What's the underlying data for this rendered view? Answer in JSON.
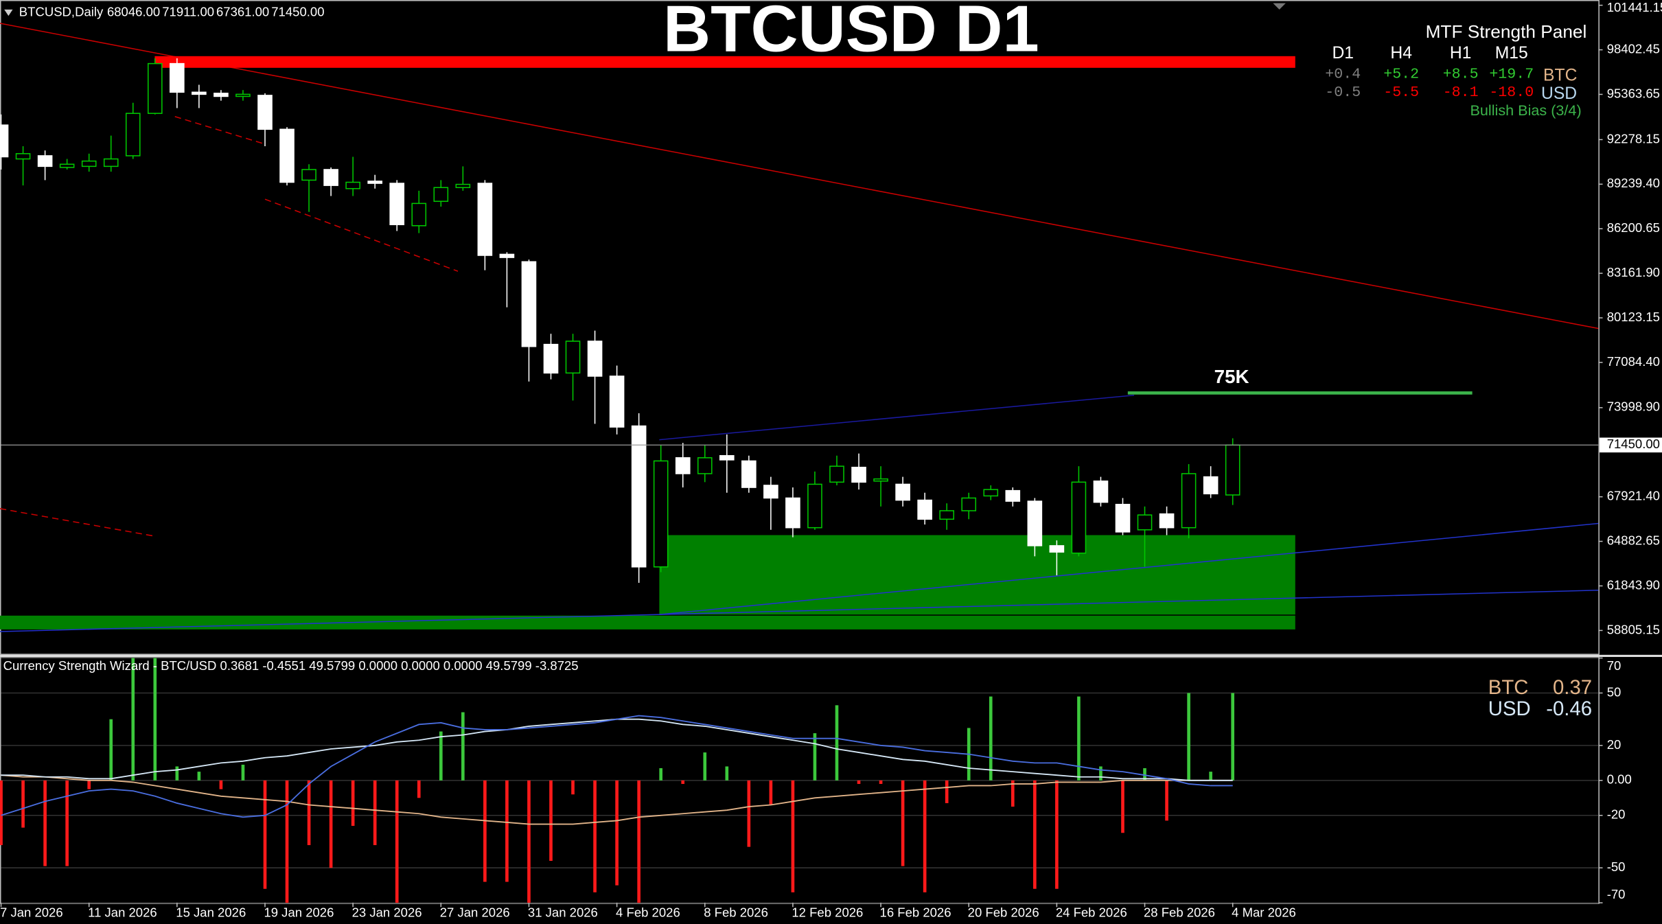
{
  "header": {
    "symbol": "BTCUSD,Daily",
    "ohlc": [
      "68046.00",
      "71911.00",
      "67361.00",
      "71450.00"
    ]
  },
  "title": "BTCUSD D1",
  "mtf_panel": {
    "title": "MTF Strength Panel",
    "columns": [
      "D1",
      "H4",
      "H1",
      "M15"
    ],
    "rows": [
      {
        "label": "BTC",
        "values": [
          "+0.4",
          "+5.2",
          "+8.5",
          "+19.7"
        ]
      },
      {
        "label": "USD",
        "values": [
          "-0.5",
          "-5.5",
          "-8.1",
          "-18.0"
        ]
      }
    ],
    "bias": "Bullish Bias (3/4)"
  },
  "chart_data": [
    {
      "type": "candlestick",
      "categories": [
        "7 Jan 2026",
        null,
        null,
        null,
        "11 Jan 2026",
        null,
        null,
        null,
        "15 Jan 2026",
        null,
        null,
        null,
        "19 Jan 2026",
        null,
        null,
        null,
        "23 Jan 2026",
        null,
        null,
        null,
        "27 Jan 2026",
        null,
        null,
        null,
        "31 Jan 2026",
        null,
        null,
        null,
        "4 Feb 2026",
        null,
        null,
        null,
        "8 Feb 2026",
        null,
        null,
        null,
        "12 Feb 2026",
        null,
        null,
        null,
        "16 Feb 2026",
        null,
        null,
        null,
        "20 Feb 2026",
        null,
        null,
        null,
        "24 Feb 2026",
        null,
        null,
        null,
        "28 Feb 2026",
        null,
        null,
        null,
        "4 Mar 2026"
      ],
      "open": [
        93272,
        90960,
        91177,
        90382,
        90454,
        90454,
        91177,
        94067,
        97463,
        95512,
        95440,
        95225,
        95296,
        92983,
        89515,
        90237,
        88937,
        89443,
        89298,
        86408,
        88070,
        89009,
        89298,
        84457,
        83951,
        78314,
        76363,
        78531,
        76147,
        72750,
        63140,
        70583,
        69499,
        70727,
        70366,
        68704,
        67837,
        65814,
        68921,
        69932,
        68993,
        68776,
        67692,
        66392,
        66970,
        67981,
        68343,
        67620,
        64585,
        64079,
        68993,
        67403,
        65669,
        66753,
        65814,
        69282,
        68046
      ],
      "high": [
        93995,
        91827,
        91538,
        90960,
        91321,
        92550,
        94790,
        97825,
        97825,
        96018,
        95657,
        95657,
        95440,
        93128,
        90599,
        90382,
        91105,
        89876,
        89515,
        88792,
        89515,
        90454,
        89515,
        84601,
        84095,
        79037,
        79037,
        79254,
        76869,
        73618,
        71450,
        71594,
        71450,
        72172,
        70727,
        69282,
        68559,
        69643,
        70727,
        70872,
        70005,
        69282,
        68198,
        67475,
        68198,
        68704,
        68559,
        67837,
        64946,
        70005,
        69282,
        67837,
        67259,
        67259,
        70149,
        70005,
        71911
      ],
      "low": [
        90237,
        89153,
        89515,
        90237,
        90093,
        90093,
        90960,
        93995,
        94428,
        94428,
        94934,
        94934,
        91827,
        89153,
        87347,
        88431,
        88431,
        88937,
        86046,
        85902,
        87708,
        88792,
        83373,
        80844,
        75785,
        75930,
        74485,
        72895,
        72172,
        62056,
        62779,
        68559,
        68921,
        68198,
        68198,
        65669,
        65163,
        65669,
        68704,
        68415,
        67259,
        67259,
        66030,
        65669,
        66392,
        67692,
        67259,
        63862,
        62562,
        63862,
        67259,
        65308,
        63140,
        65308,
        65091,
        67837,
        67361
      ],
      "close": [
        91105,
        91321,
        90454,
        90599,
        90815,
        90960,
        94067,
        97463,
        95512,
        95368,
        95225,
        95368,
        92983,
        89370,
        90237,
        89153,
        89370,
        89298,
        86480,
        87925,
        89009,
        89226,
        84384,
        84240,
        78170,
        76363,
        78531,
        76147,
        72678,
        63140,
        70366,
        69499,
        70583,
        70438,
        68559,
        67837,
        65814,
        68776,
        70005,
        68921,
        69137,
        67692,
        66392,
        66970,
        67837,
        68415,
        67620,
        64585,
        64152,
        68921,
        67548,
        65524,
        66681,
        65814,
        69499,
        68126,
        71450
      ],
      "up_color": "#00c800",
      "down_color": "#ffffff",
      "ylim": [
        57214,
        101799
      ],
      "yticks": [
        101441.15,
        98402.45,
        95363.65,
        92278.15,
        {
          "value": 89239.4,
          "label": "89239.40"
        },
        86200.65,
        {
          "value": 83161.9,
          "label": "83161.90"
        },
        80123.15,
        {
          "value": 77084.4,
          "label": "77084.40"
        },
        {
          "value": 73998.9,
          "label": "73998.90"
        },
        {
          "value": 67921.4,
          "label": "67921.40"
        },
        64882.65,
        {
          "value": 61843.9,
          "label": "61843.90"
        },
        58805.15
      ],
      "last_price": {
        "value": 71450,
        "label": "71450.00"
      },
      "levels": [
        {
          "label": "75K",
          "value": 75000,
          "color": "#3cb44b"
        }
      ],
      "grid": false
    },
    {
      "type": "bar",
      "title": "Currency Strength Wizard - BTC/USD 0.3681 -0.4551 49.5799 0.0000 0.0000 0.0000 49.5799 -3.8725",
      "values": [
        -37,
        -27,
        -49,
        -49,
        -5,
        35,
        70,
        70,
        8,
        5,
        -5,
        9,
        -62,
        -70,
        -37,
        -50,
        -26,
        -37,
        -70,
        -10,
        28,
        39,
        -58,
        -58,
        -70,
        -46,
        -8,
        -64,
        -60,
        -70,
        7,
        -2,
        16,
        8,
        -38,
        -14,
        -64,
        27,
        43,
        -2,
        -2,
        -49,
        -64,
        -13,
        30,
        48,
        -15,
        -62,
        -62,
        48,
        8,
        -30,
        7,
        -23,
        50,
        5,
        50
      ],
      "up_color": "#3cc83c",
      "down_color": "#ff1a1a",
      "series": [
        {
          "name": "BTC",
          "color": "#e3b58a",
          "legend_value": 0.37,
          "values": [
            3,
            2,
            2,
            1,
            0,
            0,
            -1,
            -3,
            -5,
            -7,
            -9,
            -10,
            -11,
            -12,
            -14,
            -15,
            -16,
            -17,
            -18,
            -19,
            -21,
            -22,
            -23,
            -24,
            -25,
            -25,
            -25,
            -24,
            -23,
            -21,
            -20,
            -19,
            -18,
            -17,
            -15,
            -14,
            -12,
            -10,
            -9,
            -8,
            -7,
            -6,
            -5,
            -4,
            -3,
            -3,
            -2,
            -2,
            -1,
            -1,
            -1,
            0,
            0,
            0,
            0,
            0,
            0
          ]
        },
        {
          "name": "USD",
          "color": "#d6e8f7",
          "legend_value": -0.46,
          "values": [
            3,
            3,
            2,
            2,
            1,
            1,
            3,
            5,
            6,
            8,
            10,
            11,
            13,
            14,
            16,
            18,
            19,
            20,
            22,
            23,
            25,
            26,
            28,
            29,
            31,
            32,
            33,
            34,
            35,
            35,
            34,
            32,
            31,
            29,
            27,
            25,
            23,
            21,
            18,
            16,
            14,
            12,
            11,
            9,
            7,
            6,
            5,
            4,
            3,
            2,
            2,
            1,
            1,
            1,
            0,
            0,
            0
          ]
        },
        {
          "color": "#4a6ee0",
          "values": [
            -20,
            -16,
            -12,
            -9,
            -6,
            -5,
            -6,
            -9,
            -13,
            -16,
            -19,
            -21,
            -20,
            -14,
            -2,
            8,
            15,
            22,
            27,
            32,
            33,
            30,
            29,
            29,
            30,
            31,
            32,
            33,
            35,
            37,
            36,
            34,
            32,
            30,
            28,
            26,
            24,
            24,
            24,
            22,
            20,
            19,
            17,
            16,
            15,
            13,
            11,
            10,
            10,
            8,
            6,
            5,
            3,
            1,
            -2,
            -3,
            -3
          ]
        }
      ],
      "ylim": [
        -70,
        70
      ],
      "yticks": [
        70,
        50,
        20,
        {
          "value": 0,
          "label": "0.00"
        },
        -20,
        -50,
        -70
      ],
      "grid": true
    }
  ]
}
